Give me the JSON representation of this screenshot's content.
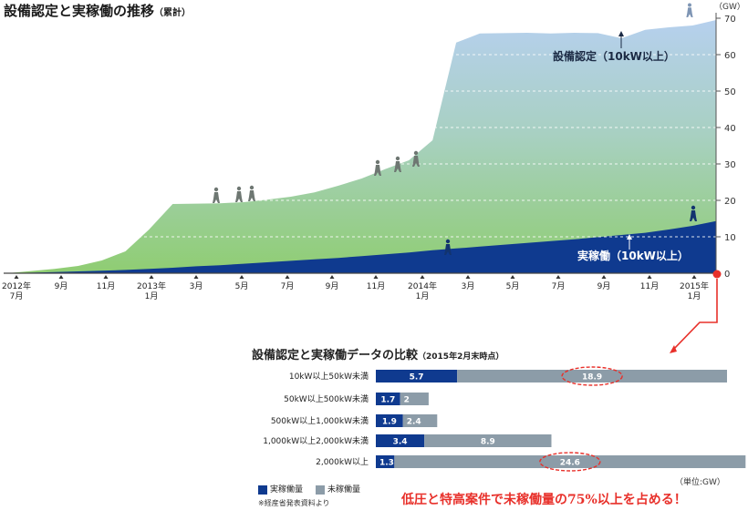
{
  "page_title": "設備認定と実稼働の推移",
  "page_title_sub": "（累計）",
  "bar_title": "設備認定と実稼働データの比較",
  "bar_title_sub": "（2015年2月末時点）",
  "unit_label": "（単位:GW）",
  "note": "※経産省発表資料より",
  "callout": "低圧と特高案件で未稼働量の75%以上を占める！",
  "colors": {
    "operating": "#0f3a8f",
    "certified_top": "#b6d0ee",
    "certified_bottom": "#8fcd72",
    "not_operating": "#8c9ca8",
    "highlight": "#e8302a"
  },
  "chart_data": [
    {
      "type": "area",
      "y_unit": "（GW）",
      "ylim": [
        0,
        70
      ],
      "y_ticks": [
        0,
        10,
        20,
        30,
        40,
        50,
        60,
        70
      ],
      "x_tick_labels": [
        {
          "top": "2012年",
          "bottom": "7月"
        },
        {
          "top": "9月",
          "bottom": ""
        },
        {
          "top": "11月",
          "bottom": ""
        },
        {
          "top": "2013年",
          "bottom": "1月"
        },
        {
          "top": "3月",
          "bottom": ""
        },
        {
          "top": "5月",
          "bottom": ""
        },
        {
          "top": "7月",
          "bottom": ""
        },
        {
          "top": "9月",
          "bottom": ""
        },
        {
          "top": "11月",
          "bottom": ""
        },
        {
          "top": "2014年",
          "bottom": "1月"
        },
        {
          "top": "3月",
          "bottom": ""
        },
        {
          "top": "5月",
          "bottom": ""
        },
        {
          "top": "7月",
          "bottom": ""
        },
        {
          "top": "9月",
          "bottom": ""
        },
        {
          "top": "11月",
          "bottom": ""
        },
        {
          "top": "2015年",
          "bottom": "1月"
        }
      ],
      "series": [
        {
          "name": "設備認定（10kW以上）",
          "values": [
            0.0,
            0.6,
            1.2,
            2.0,
            3.5,
            6.0,
            12.0,
            19.0,
            19.1,
            19.2,
            19.5,
            20.2,
            21.0,
            22.2,
            24.0,
            26.0,
            28.6,
            31.0,
            36.5,
            63.3,
            65.8,
            65.9,
            66.0,
            65.8,
            66.0,
            65.9,
            64.5,
            66.8,
            67.5,
            68.0,
            69.5
          ]
        },
        {
          "name": "実稼働（10kW以上）",
          "values": [
            0.0,
            0.15,
            0.3,
            0.5,
            0.7,
            0.9,
            1.2,
            1.5,
            1.9,
            2.2,
            2.6,
            3.0,
            3.4,
            3.8,
            4.2,
            4.7,
            5.2,
            5.7,
            6.3,
            6.8,
            7.3,
            7.8,
            8.3,
            8.8,
            9.3,
            9.9,
            10.5,
            11.1,
            12.0,
            13.0,
            14.3
          ]
        }
      ]
    },
    {
      "type": "bar",
      "orientation": "horizontal",
      "stacked": true,
      "categories": [
        "10kW以上50kW未満",
        "50kW以上500kW未満",
        "500kW以上1,000kW未満",
        "1,000kW以上2,000kW未満",
        "2,000kW以上"
      ],
      "series": [
        {
          "name": "実稼働量",
          "values": [
            5.7,
            1.7,
            1.9,
            3.4,
            1.3
          ]
        },
        {
          "name": "未稼働量",
          "values": [
            18.9,
            2.0,
            2.4,
            8.9,
            24.6
          ]
        }
      ],
      "highlighted": [
        "10kW以上50kW未満",
        "2,000kW以上"
      ]
    }
  ]
}
